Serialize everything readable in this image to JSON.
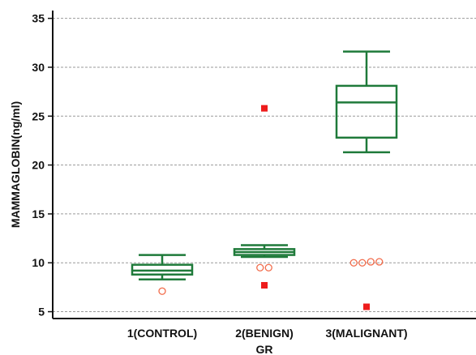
{
  "chart_data": {
    "type": "box",
    "title": "",
    "xlabel": "GR",
    "ylabel": "MAMMAGLOBIN(ng/ml)",
    "ylim": [
      4.3,
      35.8
    ],
    "yticks": [
      5,
      10,
      15,
      20,
      25,
      30,
      35
    ],
    "grid": "horizontal-dashed",
    "colors": {
      "box": "#1f7a3a",
      "outlier_open": "#f26b4a",
      "outlier_far": "#ee1c1c",
      "grid": "#9a9a9a",
      "axis": "#111111"
    },
    "categories": [
      "1(CONTROL)",
      "2(BENIGN)",
      "3(MALIGNANT)"
    ],
    "boxes": [
      {
        "label": "1(CONTROL)",
        "whisker_low": 8.3,
        "q1": 8.8,
        "median": 9.2,
        "q3": 9.8,
        "whisker_high": 10.8,
        "outliers": [
          7.1
        ],
        "far_outliers": []
      },
      {
        "label": "2(BENIGN)",
        "whisker_low": 10.6,
        "q1": 10.8,
        "median": 11.1,
        "q3": 11.4,
        "whisker_high": 11.8,
        "outliers": [
          9.5,
          9.5
        ],
        "far_outliers": [
          25.8,
          7.7
        ]
      },
      {
        "label": "3(MALIGNANT)",
        "whisker_low": 21.3,
        "q1": 22.8,
        "median": 26.4,
        "q3": 28.1,
        "whisker_high": 31.6,
        "outliers": [
          10.0,
          10.0,
          10.1,
          10.1
        ],
        "far_outliers": [
          5.5
        ]
      }
    ]
  }
}
